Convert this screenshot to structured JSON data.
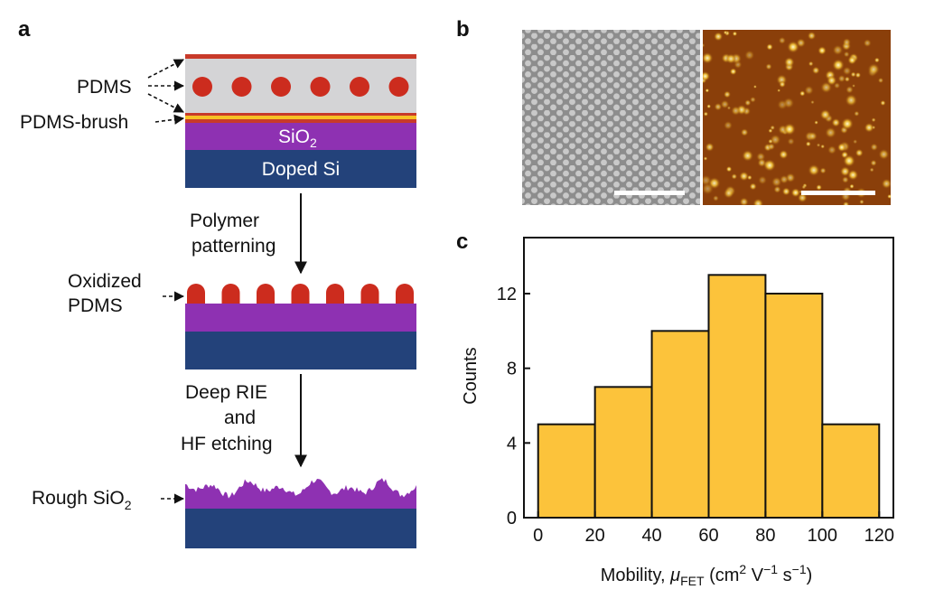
{
  "panels": {
    "a": "a",
    "b": "b",
    "c": "c"
  },
  "schematic": {
    "label_pdms": "PDMS",
    "label_brush": "PDMS-brush",
    "label_sio2_main": "SiO",
    "label_sio2_sub": "2",
    "label_doped_si": "Doped Si",
    "step1_line1": "Polymer",
    "step1_line2": "patterning",
    "label_ox_line1": "Oxidized",
    "label_ox_line2": "PDMS",
    "step2_line1": "Deep RIE",
    "step2_line2": "and",
    "step2_line3": "HF etching",
    "label_rough_main": "Rough SiO",
    "label_rough_sub": "2",
    "colors": {
      "top_red": "#c83a2a",
      "pdms_gray": "#d4d4d6",
      "dot_red": "#cc2c1e",
      "brush_yellow": "#f6c125",
      "sio2_purple": "#8e31b2",
      "si_navy": "#23427a"
    }
  },
  "micrographs": {
    "sem_bg": "#8e8e8e",
    "afm_bg": "#8a3f0a"
  },
  "chart_data": {
    "type": "bar",
    "bin_edges": [
      0,
      20,
      40,
      60,
      80,
      100,
      120
    ],
    "values": [
      5,
      7,
      10,
      13,
      12,
      5
    ],
    "xlabel_prefix": "Mobility, ",
    "xlabel_mu": "μ",
    "xlabel_sub": "FET",
    "xlabel_unit_open": " (cm",
    "xlabel_sup2": "2",
    "xlabel_V": " V",
    "xlabel_supm1a": "−1",
    "xlabel_s": " s",
    "xlabel_supm1b": "−1",
    "xlabel_close": ")",
    "ylabel": "Counts",
    "xlim": [
      -5,
      125
    ],
    "ylim": [
      0,
      15
    ],
    "xticks": [
      0,
      20,
      40,
      60,
      80,
      100,
      120
    ],
    "yticks": [
      0,
      4,
      8,
      12
    ],
    "bar_color": "#fcc33b"
  }
}
